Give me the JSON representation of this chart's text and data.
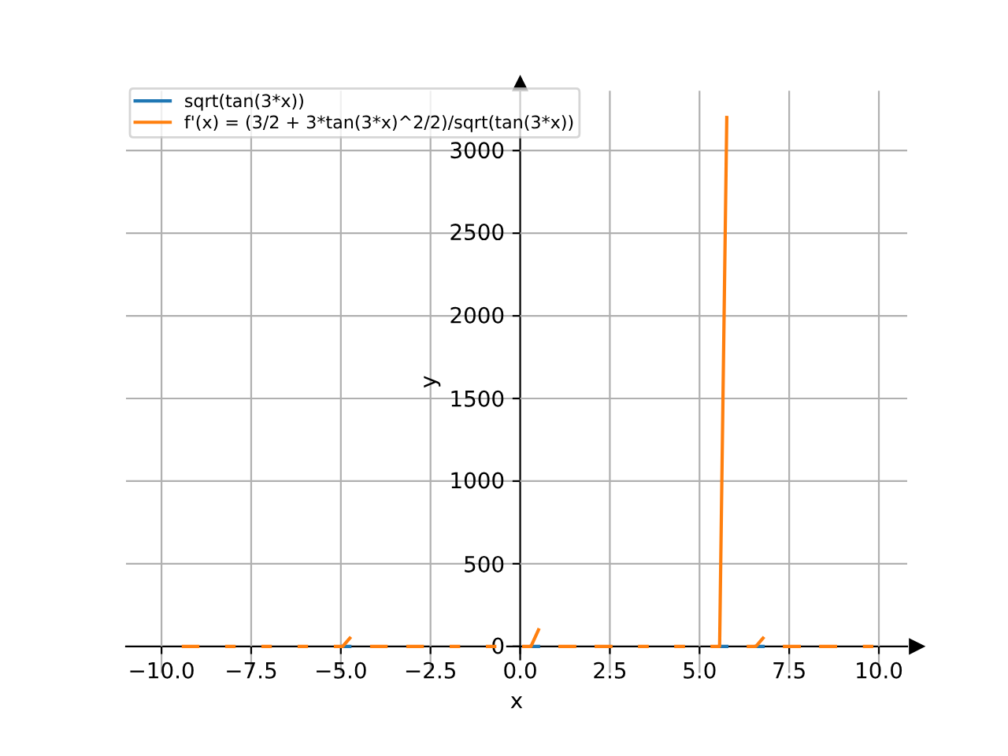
{
  "chart_data": {
    "type": "line",
    "xlabel": "x",
    "ylabel": "y",
    "x": [
      -9.39,
      -8.99,
      -8.79,
      -8.59,
      -8.38,
      -8.18,
      -7.98,
      -7.78,
      -7.58,
      -7.37,
      -7.17,
      -6.97,
      -6.77,
      -6.57,
      -6.36,
      -6.16,
      -5.96,
      -5.76,
      -5.56,
      -5.35,
      -5.15,
      -4.95,
      -4.75,
      -4.55,
      -4.34,
      -4.14,
      -3.74,
      -3.54,
      -3.33,
      -3.13,
      -2.73,
      -2.53,
      -2.32,
      -2.12,
      -1.92,
      -1.72,
      -1.52,
      -1.31,
      -1.11,
      -0.91,
      -0.71,
      -0.51,
      -0.3,
      -0.1,
      0.1,
      0.3,
      0.51,
      0.71,
      0.91,
      1.11,
      1.52,
      1.72,
      1.92,
      2.12,
      2.53,
      2.73,
      2.93,
      3.13,
      3.33,
      3.54,
      3.74,
      3.94,
      4.14,
      4.34,
      4.55,
      4.75,
      4.95,
      5.15,
      5.35,
      5.56,
      5.76,
      5.96,
      6.16,
      6.36,
      6.57,
      6.77,
      6.97,
      7.17,
      7.37,
      7.78,
      7.98,
      8.18,
      8.38,
      8.79,
      8.99,
      9.19,
      9.39,
      9.6,
      9.8
    ],
    "series": [
      {
        "name": "sqrt(tan(3*x))",
        "color": "#1f77b4",
        "values": [
          null,
          null,
          null,
          null,
          null,
          null,
          null,
          null,
          null,
          null,
          null,
          null,
          null,
          null,
          null,
          null,
          null,
          null,
          null,
          null,
          null,
          0,
          0,
          null,
          null,
          null,
          null,
          null,
          null,
          null,
          null,
          null,
          null,
          null,
          null,
          null,
          null,
          null,
          null,
          null,
          null,
          null,
          null,
          null,
          null,
          0,
          0,
          null,
          null,
          null,
          null,
          null,
          null,
          null,
          null,
          null,
          null,
          null,
          null,
          null,
          null,
          null,
          null,
          null,
          null,
          null,
          null,
          null,
          null,
          0,
          0,
          null,
          null,
          null,
          0,
          0,
          null,
          null,
          null,
          null,
          null,
          null,
          null,
          null,
          null,
          null,
          null,
          null,
          null
        ]
      },
      {
        "name": "f'(x) = (3/2 + 3*tan(3*x)^2/2)/sqrt(tan(3*x))",
        "color": "#ff7f0e",
        "values": [
          0,
          0,
          null,
          null,
          null,
          0,
          0,
          null,
          null,
          null,
          0,
          0,
          null,
          null,
          null,
          0,
          0,
          null,
          null,
          null,
          0,
          0,
          50,
          null,
          null,
          0,
          0,
          null,
          null,
          0,
          0,
          null,
          null,
          null,
          0,
          0,
          null,
          null,
          null,
          0,
          0,
          null,
          null,
          null,
          0,
          0,
          100,
          null,
          null,
          0,
          0,
          null,
          null,
          0,
          0,
          null,
          null,
          null,
          0,
          0,
          null,
          null,
          null,
          0,
          0,
          null,
          null,
          null,
          0,
          0,
          3200,
          null,
          null,
          0,
          0,
          50,
          null,
          null,
          0,
          0,
          null,
          null,
          0,
          0,
          null,
          null,
          null,
          0,
          0
        ]
      }
    ],
    "xlim": [
      -10.99,
      10.79
    ],
    "ylim": [
      -160,
      3362
    ],
    "xticks": [
      {
        "value": -10,
        "label": "−10.0"
      },
      {
        "value": -7.5,
        "label": "−7.5"
      },
      {
        "value": -5,
        "label": "−5.0"
      },
      {
        "value": -2.5,
        "label": "−2.5"
      },
      {
        "value": 0,
        "label": "0.0"
      },
      {
        "value": 2.5,
        "label": "2.5"
      },
      {
        "value": 5,
        "label": "5.0"
      },
      {
        "value": 7.5,
        "label": "7.5"
      },
      {
        "value": 10,
        "label": "10.0"
      }
    ],
    "yticks": [
      0,
      500,
      1000,
      1500,
      2000,
      2500,
      3000
    ],
    "grid": true,
    "legend": "top left",
    "line_style": "solid"
  }
}
